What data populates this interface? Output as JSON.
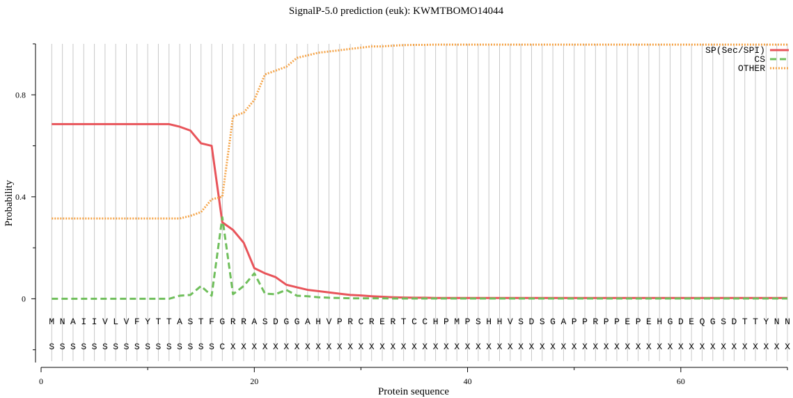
{
  "chart_data": {
    "type": "line",
    "title": "SignalP-5.0 prediction (euk):  KWMTBOMO14044",
    "xlabel": "Protein sequence",
    "ylabel": "Probability",
    "xlim": [
      0,
      70
    ],
    "ylim": [
      -0.25,
      1.0
    ],
    "x_ticks": [
      {
        "v": 0,
        "label": "0"
      },
      {
        "v": 20,
        "label": "20"
      },
      {
        "v": 40,
        "label": "40"
      },
      {
        "v": 60,
        "label": "60"
      }
    ],
    "x_minor_ticks": [
      10,
      30,
      50,
      70
    ],
    "y_ticks": [
      {
        "v": 0,
        "label": "0"
      },
      {
        "v": 0.4,
        "label": "0.4"
      },
      {
        "v": 0.8,
        "label": "0.8"
      }
    ],
    "y_minor_ticks": [
      -0.2,
      0.2,
      0.6,
      1.0
    ],
    "legend_position": "top-right",
    "positions": [
      1,
      2,
      3,
      4,
      5,
      6,
      7,
      8,
      9,
      10,
      11,
      12,
      13,
      14,
      15,
      16,
      17,
      18,
      19,
      20,
      21,
      22,
      23,
      24,
      25,
      26,
      27,
      28,
      29,
      30,
      31,
      32,
      33,
      34,
      35,
      36,
      37,
      38,
      39,
      40,
      41,
      42,
      43,
      44,
      45,
      46,
      47,
      48,
      49,
      50,
      51,
      52,
      53,
      54,
      55,
      56,
      57,
      58,
      59,
      60,
      61,
      62,
      63,
      64,
      65,
      66,
      67,
      68,
      69,
      70
    ],
    "sequence": [
      "M",
      "N",
      "A",
      "I",
      "I",
      "V",
      "L",
      "V",
      "F",
      "Y",
      "T",
      "T",
      "A",
      "S",
      "T",
      "F",
      "G",
      "R",
      "R",
      "A",
      "S",
      "D",
      "G",
      "G",
      "A",
      "H",
      "V",
      "P",
      "R",
      "C",
      "R",
      "E",
      "R",
      "T",
      "C",
      "C",
      "H",
      "P",
      "M",
      "P",
      "S",
      "H",
      "H",
      "V",
      "S",
      "D",
      "S",
      "G",
      "A",
      "P",
      "P",
      "R",
      "P",
      "P",
      "E",
      "P",
      "E",
      "H",
      "G",
      "D",
      "E",
      "Q",
      "G",
      "S",
      "D",
      "T",
      "T",
      "Y",
      "N",
      "N"
    ],
    "labels": [
      "S",
      "S",
      "S",
      "S",
      "S",
      "S",
      "S",
      "S",
      "S",
      "S",
      "S",
      "S",
      "S",
      "S",
      "S",
      "S",
      "C",
      "X",
      "X",
      "X",
      "X",
      "X",
      "X",
      "X",
      "X",
      "X",
      "X",
      "X",
      "X",
      "X",
      "X",
      "X",
      "X",
      "X",
      "X",
      "X",
      "X",
      "X",
      "X",
      "X",
      "X",
      "X",
      "X",
      "X",
      "X",
      "X",
      "X",
      "X",
      "X",
      "X",
      "X",
      "X",
      "X",
      "X",
      "X",
      "X",
      "X",
      "X",
      "X",
      "X",
      "X",
      "X",
      "X",
      "X",
      "X",
      "X",
      "X",
      "X",
      "X",
      "X"
    ],
    "series": [
      {
        "name": "SP(Sec/SPI)",
        "color": "#e8545a",
        "style": "solid",
        "values": [
          0.685,
          0.685,
          0.685,
          0.685,
          0.685,
          0.685,
          0.685,
          0.685,
          0.685,
          0.685,
          0.685,
          0.685,
          0.675,
          0.66,
          0.61,
          0.6,
          0.3,
          0.27,
          0.22,
          0.12,
          0.1,
          0.085,
          0.055,
          0.045,
          0.035,
          0.03,
          0.025,
          0.02,
          0.015,
          0.013,
          0.01,
          0.008,
          0.006,
          0.005,
          0.004,
          0.004,
          0.003,
          0.003,
          0.003,
          0.003,
          0.003,
          0.003,
          0.003,
          0.003,
          0.003,
          0.003,
          0.003,
          0.003,
          0.003,
          0.003,
          0.003,
          0.003,
          0.003,
          0.003,
          0.003,
          0.003,
          0.003,
          0.003,
          0.003,
          0.003,
          0.003,
          0.003,
          0.003,
          0.003,
          0.003,
          0.003,
          0.003,
          0.003,
          0.003,
          0.003
        ]
      },
      {
        "name": "CS",
        "color": "#70bf5c",
        "style": "dashed",
        "values": [
          0,
          0,
          0,
          0,
          0,
          0,
          0,
          0,
          0,
          0,
          0,
          0,
          0.012,
          0.015,
          0.05,
          0.012,
          0.32,
          0.018,
          0.05,
          0.1,
          0.02,
          0.018,
          0.035,
          0.012,
          0.01,
          0.006,
          0.004,
          0.003,
          0.002,
          0.002,
          0.002,
          0.002,
          0.001,
          0.001,
          0.001,
          0.001,
          0.001,
          0.001,
          0.001,
          0.001,
          0.001,
          0.001,
          0.001,
          0.001,
          0.001,
          0.001,
          0.001,
          0.001,
          0.001,
          0.001,
          0.001,
          0.001,
          0.001,
          0.001,
          0.001,
          0.001,
          0.001,
          0.001,
          0.001,
          0.001,
          0.001,
          0.001,
          0.001,
          0.001,
          0.001,
          0.001,
          0.001,
          0.001,
          0.001,
          0.001
        ]
      },
      {
        "name": "OTHER",
        "color": "#f5a54a",
        "style": "dotted",
        "values": [
          0.315,
          0.315,
          0.315,
          0.315,
          0.315,
          0.315,
          0.315,
          0.315,
          0.315,
          0.315,
          0.315,
          0.315,
          0.315,
          0.325,
          0.34,
          0.39,
          0.4,
          0.715,
          0.73,
          0.78,
          0.88,
          0.895,
          0.91,
          0.945,
          0.955,
          0.965,
          0.97,
          0.975,
          0.98,
          0.985,
          0.99,
          0.99,
          0.993,
          0.995,
          0.996,
          0.996,
          0.997,
          0.997,
          0.997,
          0.997,
          0.997,
          0.997,
          0.997,
          0.997,
          0.997,
          0.997,
          0.997,
          0.997,
          0.997,
          0.997,
          0.997,
          0.997,
          0.997,
          0.997,
          0.997,
          0.997,
          0.997,
          0.997,
          0.997,
          0.997,
          0.997,
          0.997,
          0.997,
          0.997,
          0.997,
          0.997,
          0.997,
          0.997,
          0.997,
          0.997
        ]
      }
    ]
  }
}
